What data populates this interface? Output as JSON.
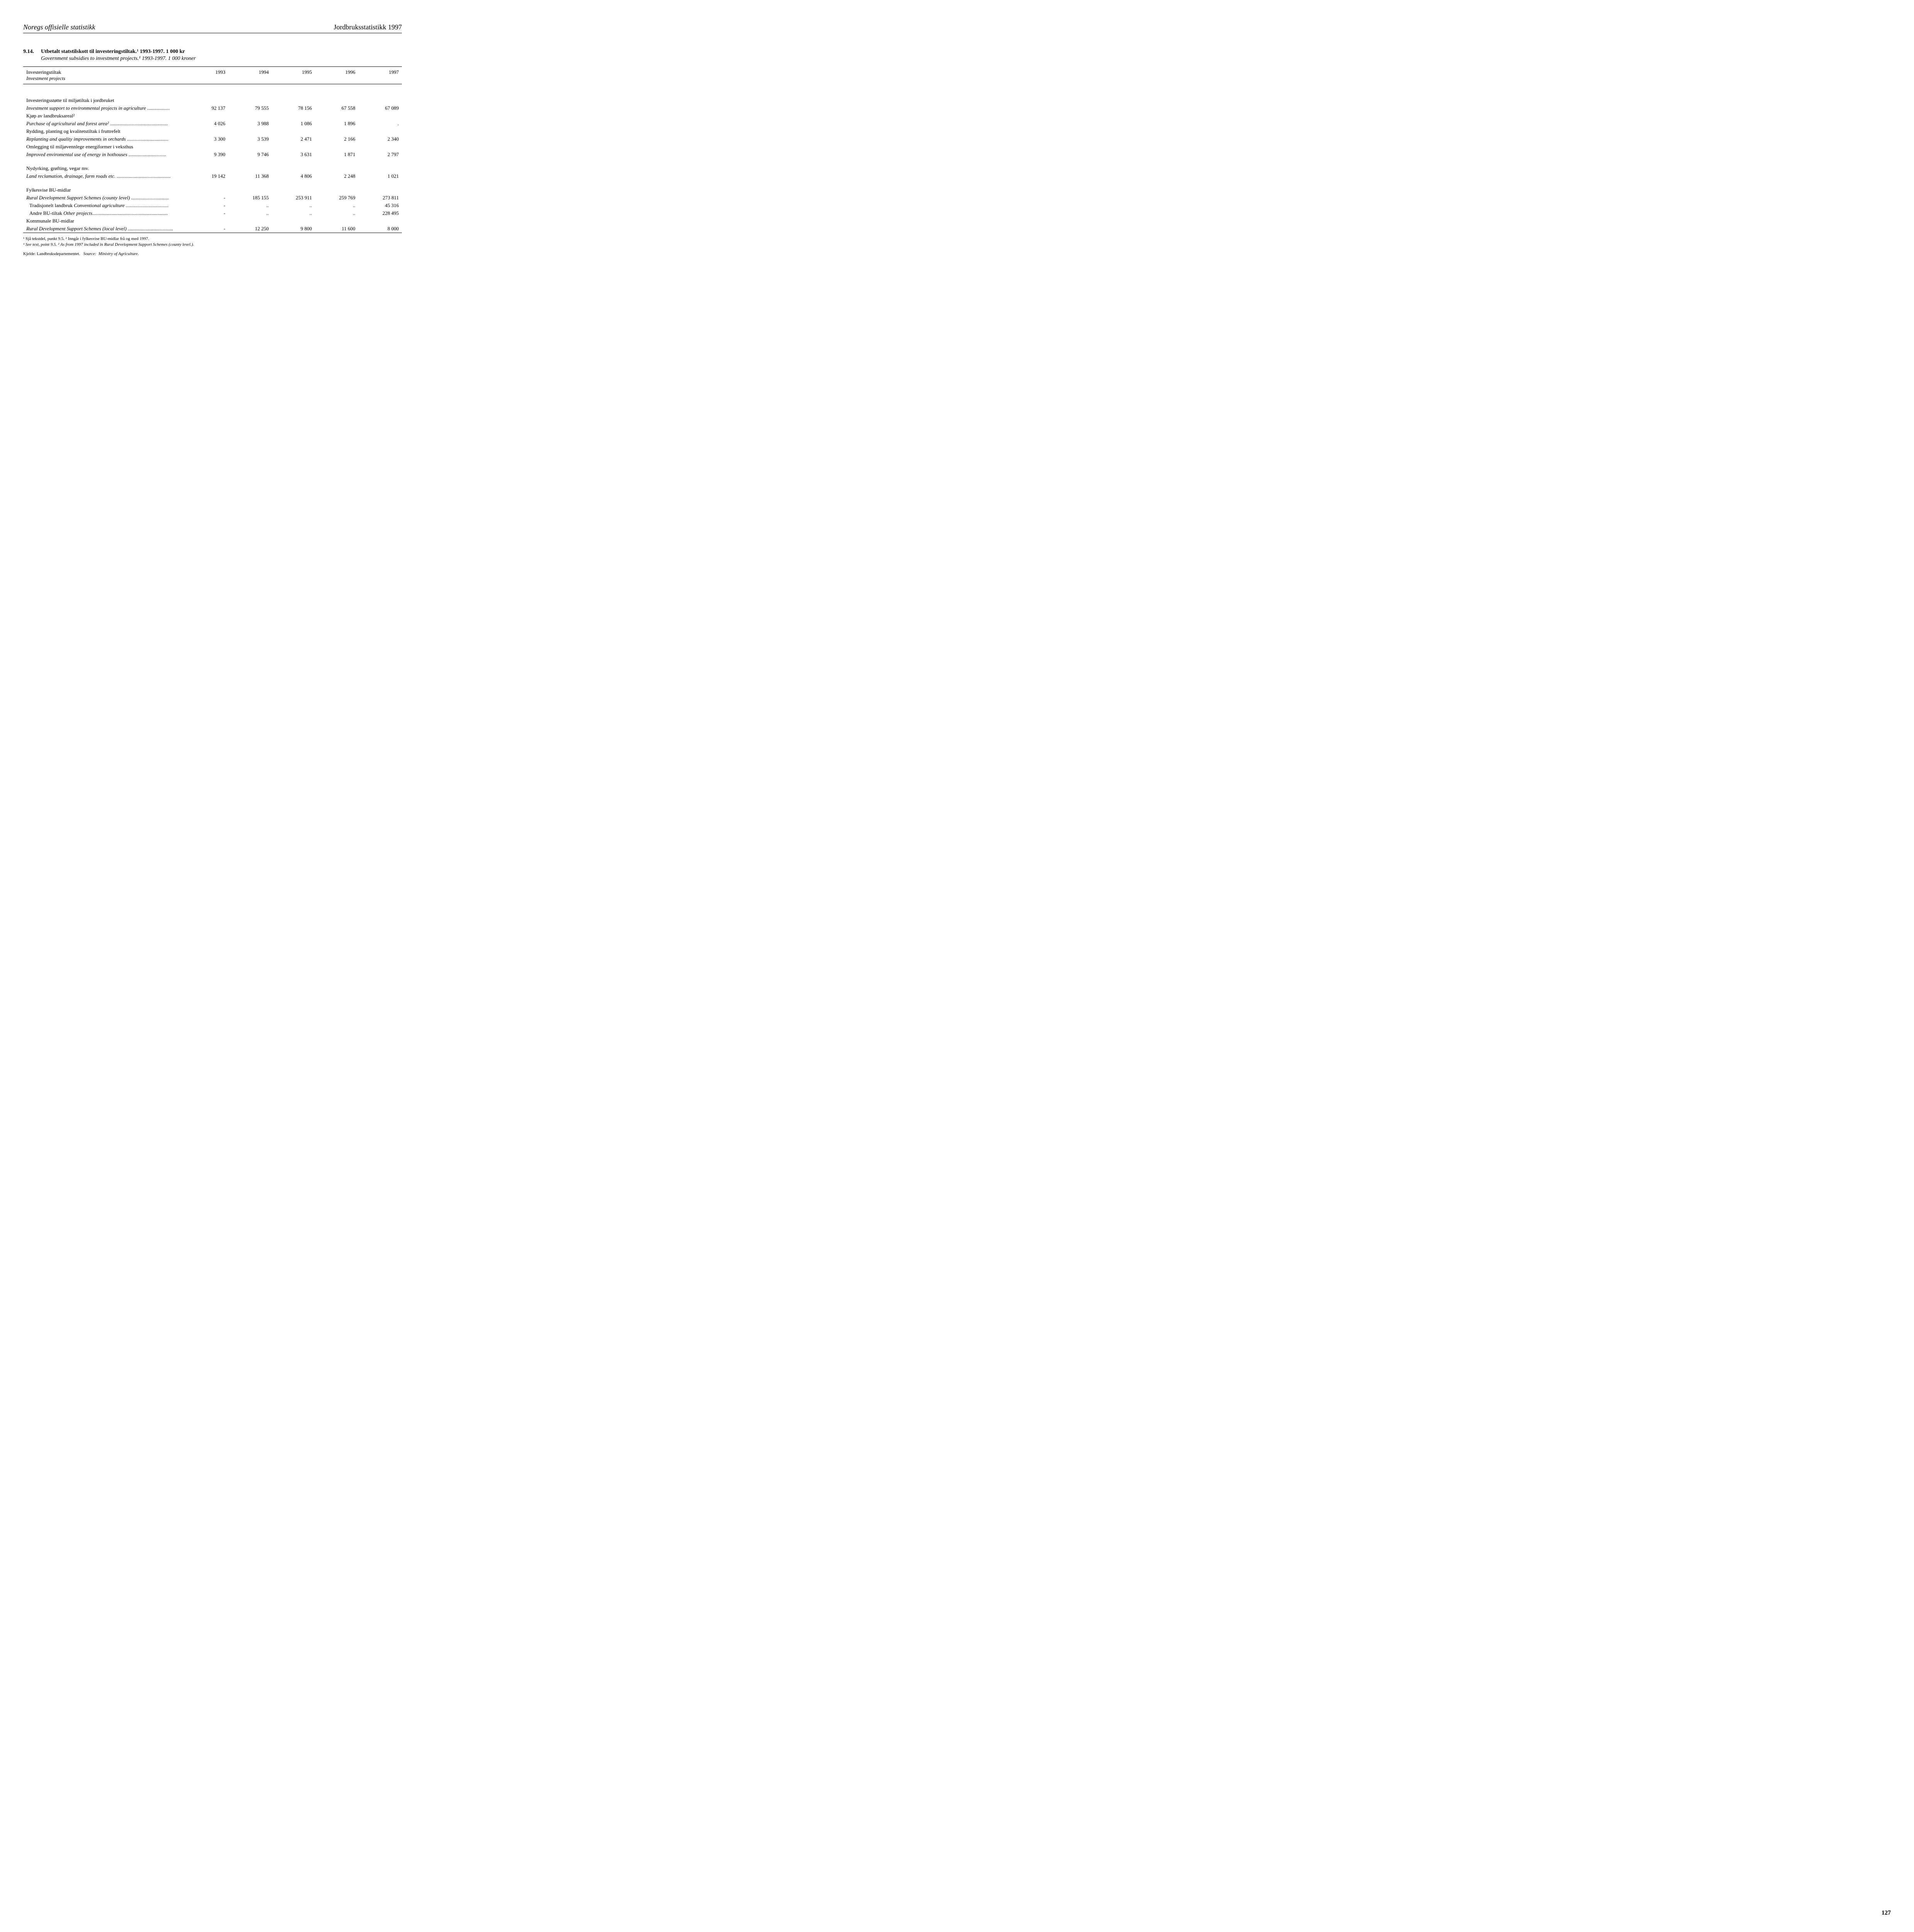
{
  "header": {
    "left": "Noregs offisielle statistikk",
    "right": "Jordbruksstatistikk 1997"
  },
  "title": {
    "number": "9.14.",
    "main": "Utbetalt statstilskott til investeringstiltak.¹ 1993-1997. 1 000 kr",
    "sub": "Government subsidies to investment projects.¹ 1993-1997. 1 000 kroner"
  },
  "table": {
    "columns": [
      "1993",
      "1994",
      "1995",
      "1996",
      "1997"
    ],
    "row_header_nb": "Investeringstiltak",
    "row_header_en": "Investment projects",
    "rows": [
      {
        "nb": "Investeringsstøtte til miljøtiltak i jordbruket",
        "en": "Investment support to environmental projects in agriculture",
        "values": [
          "92 137",
          "79 555",
          "78 156",
          "67 558",
          "67 089"
        ]
      },
      {
        "nb": "Kjøp av landbruksareal²",
        "en": "Purchase of agricultural and forest area²",
        "values": [
          "4 026",
          "3 988",
          "1 086",
          "1 896",
          "."
        ]
      },
      {
        "nb": "Rydding, planting og kvalitetstiltak i fruttrefelt",
        "en": "Replanting and quality improvements in orchards",
        "values": [
          "3 300",
          "3 539",
          "2 471",
          "2 166",
          "2 340"
        ]
      },
      {
        "nb": "Omlegging til miljøvennlege energiformer i veksthus",
        "en": "Improved enviromental use of energy in hothouses",
        "values": [
          "9 390",
          "9 746",
          "3 631",
          "1 871",
          "2 797"
        ]
      },
      {
        "nb": "Nydyrking, grøfting, vegar mv.",
        "en": "Land reclamation, drainage, farm roads etc.",
        "values": [
          "19 142",
          "11 368",
          "4 806",
          "2 248",
          "1 021"
        ]
      },
      {
        "nb": "Fylkesvise BU-midlar",
        "en": "Rural Development Support Schemes (county level)",
        "values": [
          "-",
          "185 155",
          "253 911",
          "259 769",
          "273 811"
        ]
      },
      {
        "nb_indent": "Tradisjonelt landbruk",
        "en_inline": "Conventional agriculture",
        "values": [
          "-",
          "..",
          "..",
          "..",
          "45 316"
        ]
      },
      {
        "nb_indent": "Andre BU-tiltak",
        "en_inline": "Other projects",
        "values": [
          "-",
          "..",
          "..",
          "..",
          "228 495"
        ]
      },
      {
        "nb": "Kommunale BU-midlar",
        "en": "Rural Development Support Schemes (local level)",
        "values": [
          "-",
          "12 250",
          "9 800",
          "11 600",
          "8 000"
        ]
      }
    ]
  },
  "footnotes": {
    "nb": "¹ Sjå tekstdel, punkt 9.5.  ² Inngår i fylkesvise BU-midlar frå og med 1997.",
    "en": "¹ See text, point 9.5.  ² As from 1997 included in Rural Development Support Schemes (county level.)."
  },
  "source": {
    "nb": "Kjelde:  Landbruksdepartementet.",
    "en_label": "Source:",
    "en": "Ministry of Agriculture."
  },
  "page_number": "127",
  "colors": {
    "text": "#000000",
    "background": "#ffffff",
    "rule": "#000000"
  }
}
